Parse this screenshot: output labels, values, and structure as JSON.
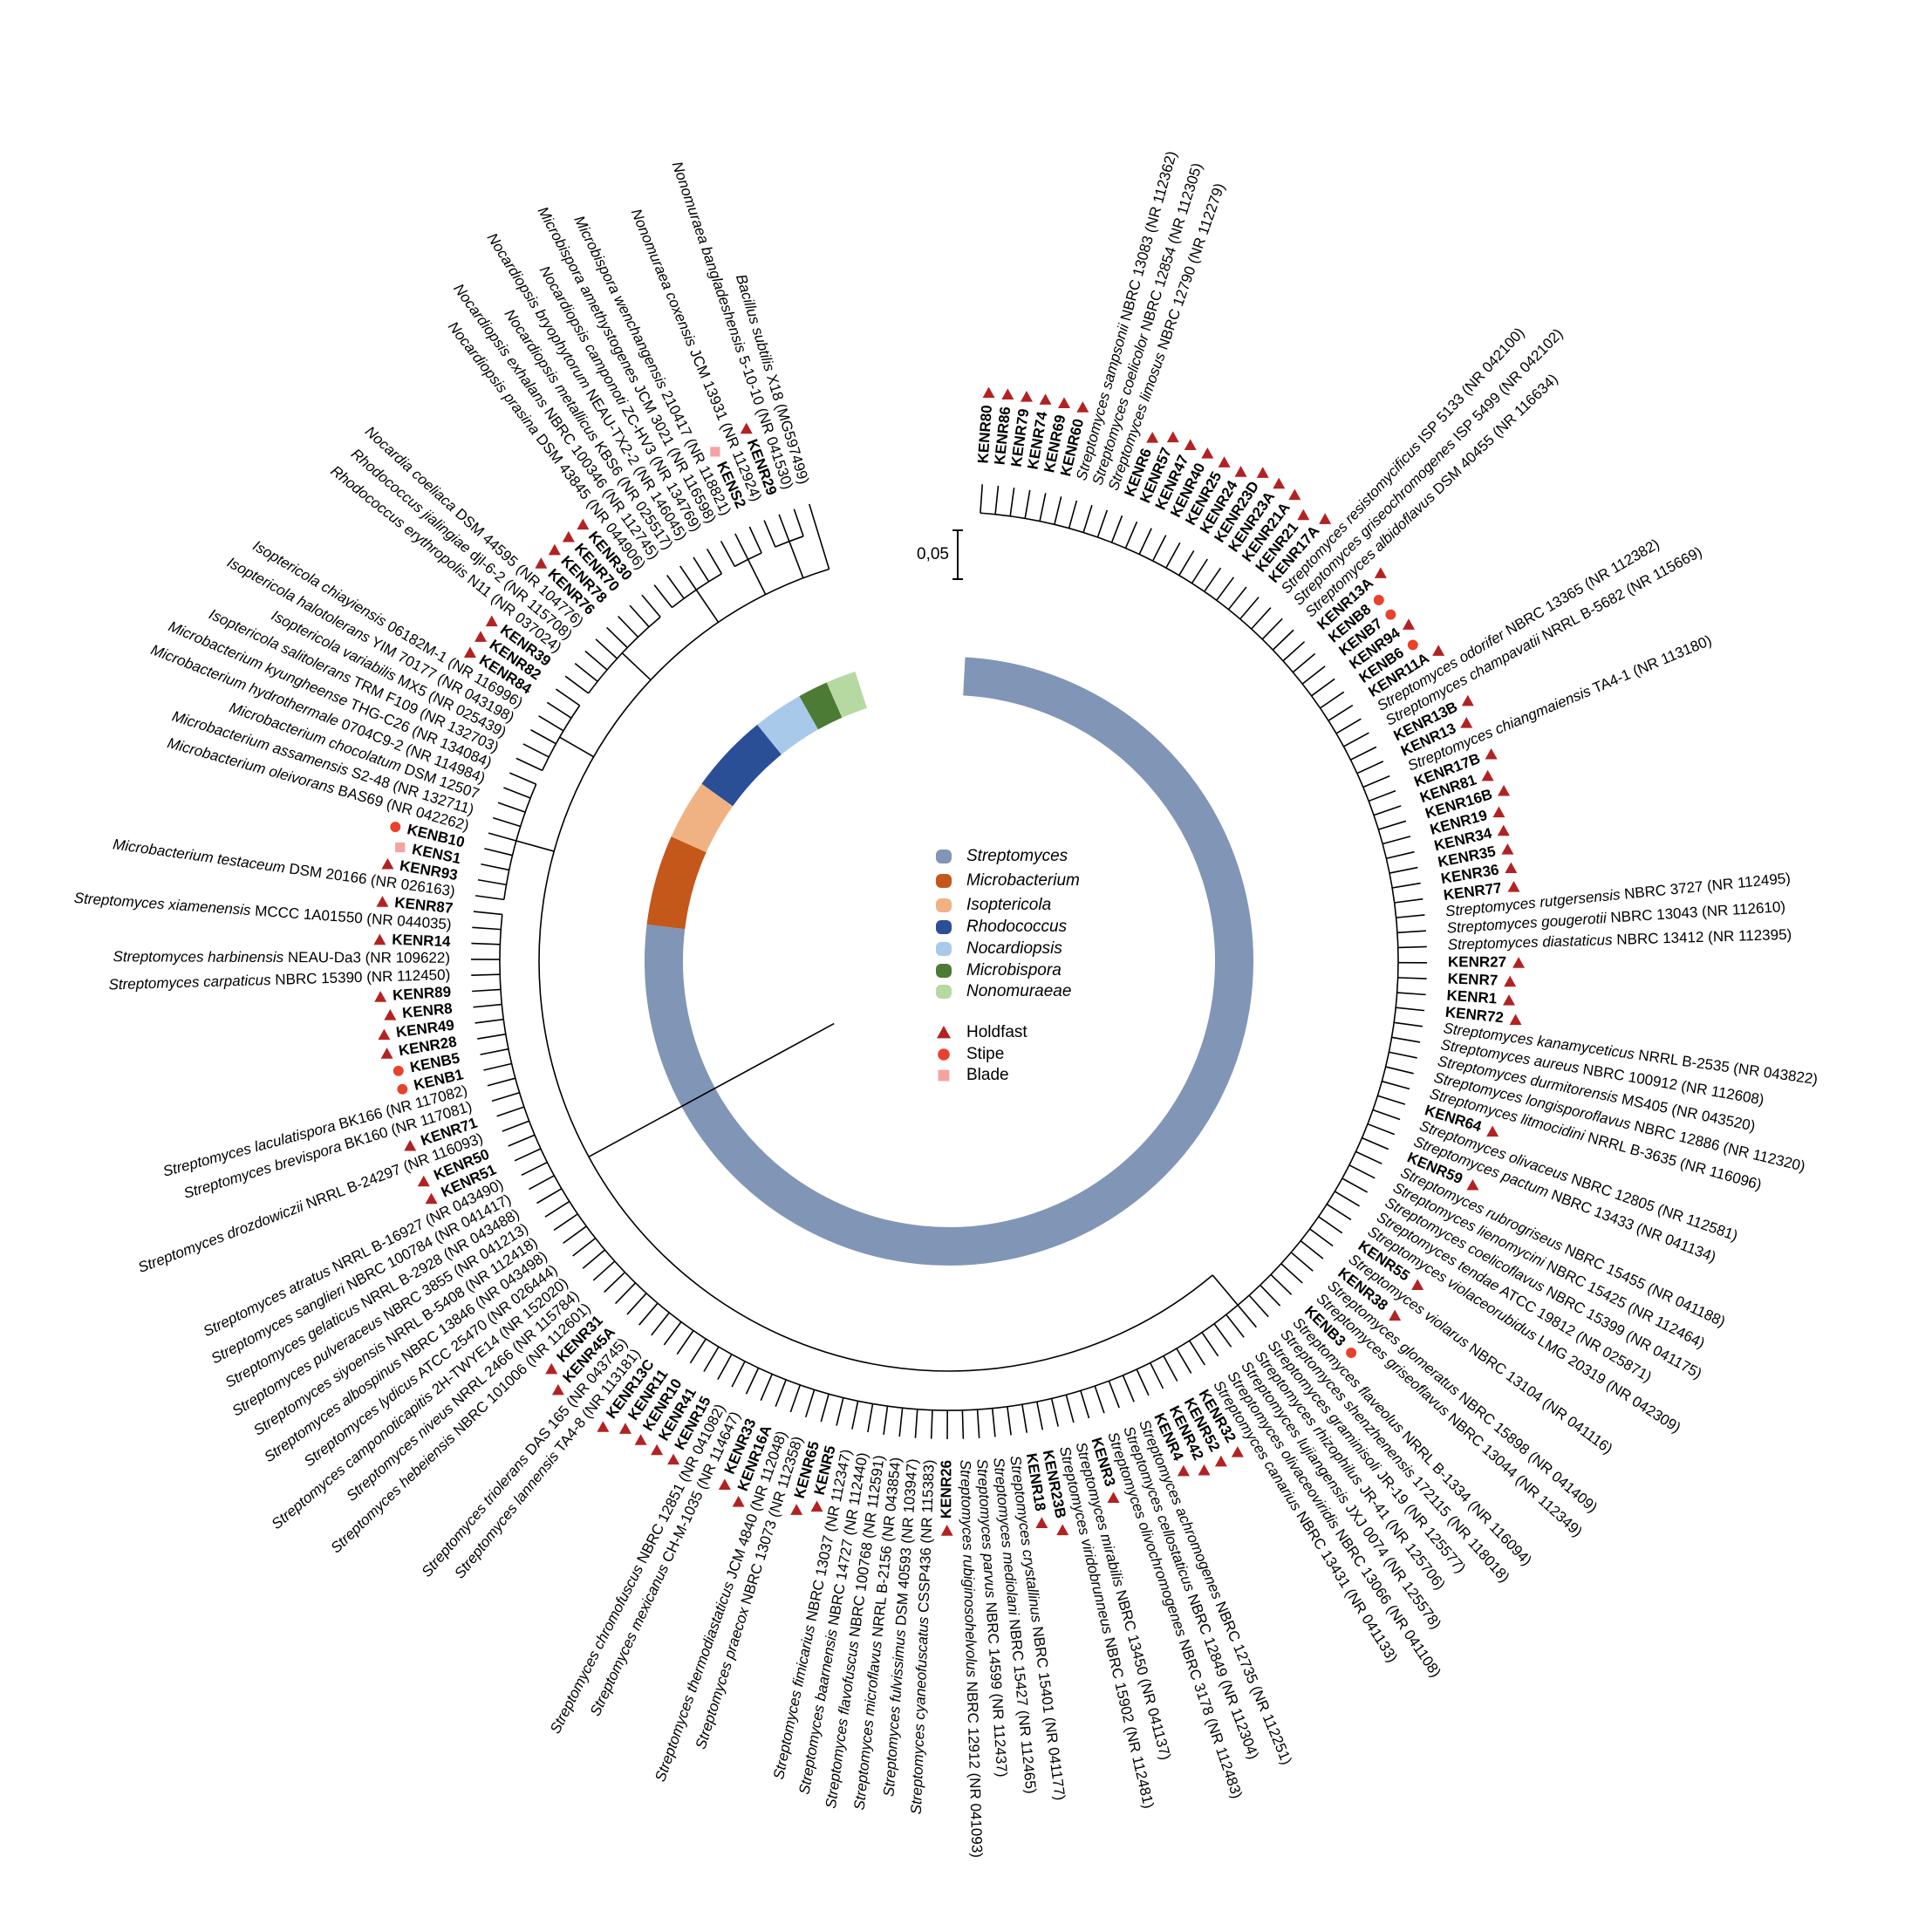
{
  "scale_bar": "0,05",
  "legend": {
    "clades": [
      {
        "name": "Streptomyces",
        "color": "#8195b6"
      },
      {
        "name": "Microbacterium",
        "color": "#c4571a"
      },
      {
        "name": "Isoptericola",
        "color": "#f1b283"
      },
      {
        "name": "Rhodococcus",
        "color": "#2b4f97"
      },
      {
        "name": "Nocardiopsis",
        "color": "#a9c9ea"
      },
      {
        "name": "Microbispora",
        "color": "#4b7b35"
      },
      {
        "name": "Nonomuraeae",
        "color": "#b6d9a2"
      }
    ],
    "sources": [
      {
        "name": "Holdfast",
        "color": "#b22222",
        "shape": "triangle"
      },
      {
        "name": "Stipe",
        "color": "#e8412c",
        "shape": "circle"
      },
      {
        "name": "Blade",
        "color": "#f4a3a3",
        "shape": "square"
      }
    ]
  },
  "tree": {
    "clades": [
      {
        "leaves": [
          {
            "label": "KENR80",
            "source": "Holdfast"
          },
          {
            "label": "KENR86",
            "source": "Holdfast"
          },
          {
            "label": "KENR79",
            "source": "Holdfast"
          },
          {
            "label": "KENR74",
            "source": "Holdfast"
          },
          {
            "label": "KENR69",
            "source": "Holdfast"
          },
          {
            "label": "KENR60",
            "source": "Holdfast"
          },
          {
            "label": "Streptomyces sampsonii NBRC 13083 (NR 112362)"
          },
          {
            "label": "Streptomyces coelicolor NBRC 12854 (NR 112305)"
          },
          {
            "label": "Streptomyces limosus NBRC 12790 (NR 112279)"
          },
          {
            "label": "KENR6",
            "source": "Holdfast"
          },
          {
            "label": "KENR57",
            "source": "Holdfast"
          },
          {
            "label": "KENR47",
            "source": "Holdfast"
          },
          {
            "label": "KENR40",
            "source": "Holdfast"
          },
          {
            "label": "KENR25",
            "source": "Holdfast"
          },
          {
            "label": "KENR24",
            "source": "Holdfast"
          },
          {
            "label": "KENR23D",
            "source": "Holdfast"
          },
          {
            "label": "KENR23A",
            "source": "Holdfast"
          },
          {
            "label": "KENR21A",
            "source": "Holdfast"
          },
          {
            "label": "KENR21",
            "source": "Holdfast"
          },
          {
            "label": "KENR17A",
            "source": "Holdfast"
          },
          {
            "label": "Streptomyces resistomycificus ISP 5133 (NR 042100)"
          },
          {
            "label": "Streptomyces griseochromogenes ISP 5499 (NR 042102)"
          },
          {
            "label": "Streptomyces albidoflavus DSM 40455 (NR 116634)"
          },
          {
            "label": "KENR13A",
            "source": "Holdfast"
          },
          {
            "label": "KENB8",
            "source": "Stipe"
          },
          {
            "label": "KENB7",
            "source": "Stipe"
          },
          {
            "label": "KENR94",
            "source": "Holdfast"
          },
          {
            "label": "KENB6",
            "source": "Stipe"
          },
          {
            "label": "KENR11A",
            "source": "Holdfast"
          },
          {
            "label": "Streptomyces odorifer NBRC 13365 (NR 112382)"
          },
          {
            "label": "Streptomyces champavatii NRRL B-5682 (NR 115669)"
          },
          {
            "label": "KENR13B",
            "source": "Holdfast"
          },
          {
            "label": "KENR13",
            "source": "Holdfast"
          },
          {
            "label": "Streptomyces chiangmaiensis TA4-1 (NR 113180)"
          },
          {
            "label": "KENR17B",
            "source": "Holdfast"
          },
          {
            "label": "KENR81",
            "source": "Holdfast"
          },
          {
            "label": "KENR16B",
            "source": "Holdfast"
          },
          {
            "label": "KENR19",
            "source": "Holdfast"
          },
          {
            "label": "KENR34",
            "source": "Holdfast"
          },
          {
            "label": "KENR35",
            "source": "Holdfast"
          },
          {
            "label": "KENR36",
            "source": "Holdfast"
          },
          {
            "label": "KENR77",
            "source": "Holdfast"
          },
          {
            "label": "Streptomyces rutgersensis NBRC 3727 (NR 112495)"
          },
          {
            "label": "Streptomyces gougerotii NBRC 13043 (NR 112610)"
          },
          {
            "label": "Streptomyces diastaticus NBRC 13412  (NR 112395)"
          },
          {
            "label": "KENR27",
            "source": "Holdfast"
          },
          {
            "label": "KENR7",
            "source": "Holdfast"
          },
          {
            "label": "KENR1",
            "source": "Holdfast"
          },
          {
            "label": "KENR72",
            "source": "Holdfast"
          },
          {
            "label": "Streptomyces kanamyceticus NRRL B-2535 (NR 043822)"
          },
          {
            "label": "Streptomyces aureus NBRC 100912 (NR 112608)"
          },
          {
            "label": "Streptomyces durmitorensis MS405 (NR 043520)"
          },
          {
            "label": "Streptomyces longisporoflavus NBRC 12886 (NR 112320)"
          },
          {
            "label": "Streptomyces litmocidini NRRL B-3635 (NR 116096)"
          },
          {
            "label": "KENR64",
            "source": "Holdfast"
          },
          {
            "label": "Streptomyces olivaceus NBRC 12805 (NR 112581)"
          },
          {
            "label": "Streptomyces pactum NBRC 13433 (NR 041134)"
          },
          {
            "label": "KENR59",
            "source": "Holdfast"
          },
          {
            "label": "Streptomyces rubrogriseus NBRC 15455 (NR 041188)"
          },
          {
            "label": "Streptomyces lienomycini NBRC 15425 (NR 112464)"
          },
          {
            "label": "Streptomyces coelicoflavus NBRC 15399 (NR 041175)"
          },
          {
            "label": "Streptomyces tendae ATCC 19812 (NR 025871)"
          },
          {
            "label": "Streptomyces violaceorubidus LMG 20319 (NR 042309)"
          },
          {
            "label": "KENR55",
            "source": "Holdfast"
          },
          {
            "label": "Streptomyces violarus NBRC 13104 (NR 041116)"
          },
          {
            "label": "KENR38",
            "source": "Holdfast"
          },
          {
            "label": "Streptomyces glomeratus NBRC 15898 (NR 041409)"
          },
          {
            "label": "Streptomyces griseoflavus NBRC 13044 (NR 112349)"
          },
          {
            "label": "KENB3",
            "source": "Stipe"
          },
          {
            "label": "Streptomyces flaveolus NRRL B-1334 (NR 116094)"
          },
          {
            "label": "Streptomyces shenzhenensis 172115 (NR 118018)"
          },
          {
            "label": "Streptomyces graminisoli JR-19 (NR 125577)"
          },
          {
            "label": "Streptomyces rhizophilus JR-41 (NR 125706)"
          },
          {
            "label": "Streptomyces lujiangensis JXJ 0074 (NR 125578)"
          },
          {
            "label": "Streptomyces olivaceoviridis NBRC 13066 (NR 041108)"
          },
          {
            "label": "Streptomyces canarius NBRC 13431 (NR 041133)"
          },
          {
            "label": "KENR32",
            "source": "Holdfast"
          },
          {
            "label": "KENR52",
            "source": "Holdfast"
          },
          {
            "label": "KENR42",
            "source": "Holdfast"
          },
          {
            "label": "KENR4",
            "source": "Holdfast"
          },
          {
            "label": "Streptomyces achromogenes NBRC 12735 (NR 112251)"
          },
          {
            "label": "Streptomyces cellostaticus NBRC 12849 (NR 112304)"
          },
          {
            "label": "Streptomyces olivochromogenes NBRC 3178 (NR 112483)"
          },
          {
            "label": "KENR3",
            "source": "Holdfast"
          },
          {
            "label": "Streptomyces mirabilis NBRC 13450 (NR 041137)"
          },
          {
            "label": "Streptomyces viridobrunneus NBRC 15902 (NR 112481)"
          },
          {
            "label": "KENR23B",
            "source": "Holdfast"
          },
          {
            "label": "KENR18",
            "source": "Holdfast"
          },
          {
            "label": "Streptomyces crystallinus NBRC 15401 (NR 041177)"
          },
          {
            "label": "Streptomyces mediolani NBRC 15427 (NR 112465)"
          },
          {
            "label": "Streptomyces parvus NBRC 14599 (NR 112437)"
          },
          {
            "label": "Streptomyces rubiginosohelvolus NBRC 12912 (NR 041093)"
          },
          {
            "label": "KENR26",
            "source": "Holdfast"
          },
          {
            "label": "Streptomyces cyaneofuscatus CSSP436 (NR 115383)"
          },
          {
            "label": "Streptomyces fulvissimus DSM 40593 (NR 103947)"
          },
          {
            "label": "Streptomyces microflavus NRRL B-2156 (NR 043854)"
          },
          {
            "label": "Streptomyces flavofuscus NBRC 100768 (NR 112591)"
          },
          {
            "label": "Streptomyces baarnensis NBRC 14727 (NR 112440)"
          },
          {
            "label": "Streptomyces fimicarius NBRC 13037 (NR 112347)"
          },
          {
            "label": "KENR5",
            "source": "Holdfast"
          },
          {
            "label": "KENR65",
            "source": "Holdfast"
          },
          {
            "label": "Streptomyces praecox NBRC 13073 (NR 112358)"
          },
          {
            "label": "Streptomyces thermodiastaticus JCM 4840 (NR 112048)"
          },
          {
            "label": "KENR16A",
            "source": "Holdfast"
          },
          {
            "label": "KENR33",
            "source": "Holdfast"
          },
          {
            "label": "Streptomyces mexicanus CH-M-1035 (NR 114647)"
          },
          {
            "label": "Streptomyces chromofuscus NBRC 12851 (NR 041082)"
          },
          {
            "label": "KENR15",
            "source": "Holdfast"
          },
          {
            "label": "KENR41",
            "source": "Holdfast"
          },
          {
            "label": "KENR10",
            "source": "Holdfast"
          },
          {
            "label": "KENR11",
            "source": "Holdfast"
          },
          {
            "label": "KENR13C",
            "source": "Holdfast"
          },
          {
            "label": "Streptomyces lannensis TA4-8 (NR 113181)"
          },
          {
            "label": "Streptomyces triolerans DAS 165 (NR 043745)"
          },
          {
            "label": "KENR45A",
            "source": "Holdfast"
          },
          {
            "label": "KENR31",
            "source": "Holdfast"
          },
          {
            "label": "Streptomyces hebeiensis NBRC 101006 (NR 112601)"
          },
          {
            "label": "Streptomyces niveus NRRL 2466 (NR 115784)"
          },
          {
            "label": "Streptomyces camponoticapitis 2H-TWYE14 (NR 152020)"
          },
          {
            "label": "Streptomyces lydicus ATCC 25470 (NR 026444)"
          },
          {
            "label": "Streptomyces albospinus NBRC 13846 (NR 043498)"
          },
          {
            "label": "Streptomyces siyoensis NRRL B-5408 (NR 112418)"
          },
          {
            "label": "Streptomyces pulveraceus NBRC 3855 (NR 041213)"
          },
          {
            "label": "Streptomyces gelaticus NRRL B-2928 (NR 043488)"
          },
          {
            "label": "Streptomyces sanglieri NBRC 100784 (NR 041417)"
          },
          {
            "label": "Streptomyces atratus NRRL B-16927 (NR 043490)"
          },
          {
            "label": "KENR51",
            "source": "Holdfast"
          },
          {
            "label": "KENR50",
            "source": "Holdfast"
          },
          {
            "label": "Streptomyces drozdowiczii NRRL B-24297 (NR 116093)"
          },
          {
            "label": "KENR71",
            "source": "Holdfast"
          },
          {
            "label": "Streptomyces brevispora BK160 (NR 117081)"
          },
          {
            "label": "Streptomyces laculatispora BK166 (NR 117082)"
          },
          {
            "label": "KENB1",
            "source": "Stipe"
          },
          {
            "label": "KENB5",
            "source": "Stipe"
          },
          {
            "label": "KENR28",
            "source": "Holdfast"
          },
          {
            "label": "KENR49",
            "source": "Holdfast"
          },
          {
            "label": "KENR8",
            "source": "Holdfast"
          },
          {
            "label": "KENR89",
            "source": "Holdfast"
          },
          {
            "label": "Streptomyces carpaticus NBRC 15390 (NR 112450)"
          },
          {
            "label": "Streptomyces harbinensis NEAU-Da3 (NR 109622)"
          },
          {
            "label": "KENR14",
            "source": "Holdfast"
          },
          {
            "label": "Streptomyces xiamenensis MCCC 1A01550 (NR 044035)"
          },
          {
            "label": "KENR87",
            "source": "Holdfast"
          }
        ]
      },
      {
        "leaves": [
          {
            "label": "Microbacterium testaceum DSM 20166 (NR 026163)"
          },
          {
            "label": "KENR93",
            "source": "Holdfast"
          },
          {
            "label": "KENS1",
            "source": "Blade"
          },
          {
            "label": "KENB10",
            "source": "Stipe"
          },
          {
            "label": "Microbacterium oleivorans BAS69 (NR 042262)"
          },
          {
            "label": "Microbacterium assamensis S2-48 (NR 132711)"
          },
          {
            "label": "Microbacterium chocolatum DSM 12507"
          },
          {
            "label": "Microbacterium hydrothermale 0704C9-2 (NR 114984)"
          },
          {
            "label": "Microbacterium kyungheense THG-C26 (NR 134084)"
          }
        ]
      },
      {
        "leaves": [
          {
            "label": "Isoptericola salitolerans TRM F109 (NR 132703)"
          },
          {
            "label": "Isoptericola variabilis MX5 (NR 025439)"
          },
          {
            "label": "Isoptericola halotolerans YIM 70177 (NR 043198)"
          },
          {
            "label": "Isoptericola chiayiensis 06182M-1 (NR 116996)"
          },
          {
            "label": "KENR84",
            "source": "Holdfast"
          },
          {
            "label": "KENR82",
            "source": "Holdfast"
          }
        ]
      },
      {
        "leaves": [
          {
            "label": "KENR39",
            "source": "Holdfast"
          },
          {
            "label": "Rhodococcus erythropolis N11 (NR 037024)"
          },
          {
            "label": "Rhodococcus jialingiae djl-6-2 (NR 115708)"
          },
          {
            "label": "Nocardia coeliaca DSM 44595 (NR 104776)"
          },
          {
            "label": "KENR76",
            "source": "Holdfast"
          },
          {
            "label": "KENR78",
            "source": "Holdfast"
          },
          {
            "label": "KENR70",
            "source": "Holdfast"
          },
          {
            "label": "KENR30",
            "source": "Holdfast"
          }
        ]
      },
      {
        "leaves": [
          {
            "label": "Nocardiopsis prasina DSM 43845 (NR 044906)"
          },
          {
            "label": "Nocardiopsis exhalans NBRC 100346 (NR 112745)"
          },
          {
            "label": "Nocardiopsis metallicus KBS6 (NR 025517)"
          },
          {
            "label": "Nocardiopsis bryophytorum NEAU-TX2-2 (NR 146045)"
          },
          {
            "label": "Nocardiopsis camponoti ZC-HV3 (NR 134769)"
          }
        ]
      },
      {
        "leaves": [
          {
            "label": "Microbispora amethystogenes JCM 3021 (NR 116598)"
          },
          {
            "label": "Microbispora wenchangensis 210417 (NR 118821)"
          },
          {
            "label": "KENS2",
            "source": "Blade"
          }
        ]
      },
      {
        "leaves": [
          {
            "label": "Nonomuraea coxensis JCM 13931 (NR 112924)"
          },
          {
            "label": "KENR29",
            "source": "Holdfast"
          },
          {
            "label": "Nonomuraea bangladeshensis 5-10-10 (NR 041530)"
          }
        ]
      }
    ],
    "outgroup": {
      "label": "Bacillus subtilis X18 (MG597499)"
    }
  }
}
